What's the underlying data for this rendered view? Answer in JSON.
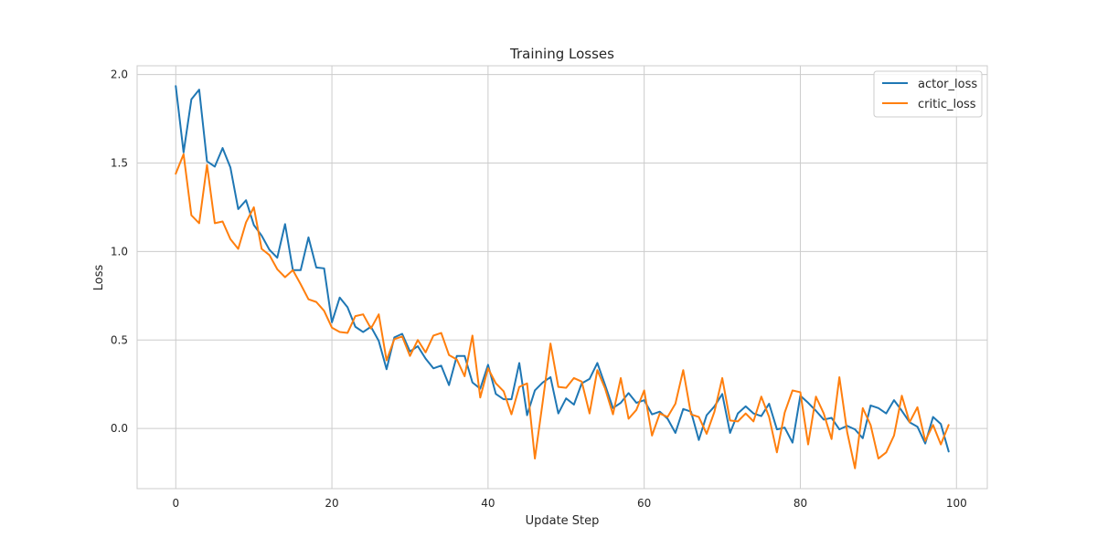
{
  "chart_data": {
    "type": "line",
    "title": "Training Losses",
    "xlabel": "Update Step",
    "ylabel": "Loss",
    "xlim": [
      -4.95,
      103.95
    ],
    "ylim": [
      -0.34,
      2.05
    ],
    "xticks": [
      0,
      20,
      40,
      60,
      80,
      100
    ],
    "yticks": [
      0.0,
      0.5,
      1.0,
      1.5,
      2.0
    ],
    "xtick_labels": [
      "0",
      "20",
      "40",
      "60",
      "80",
      "100"
    ],
    "ytick_labels": [
      "0.0",
      "0.5",
      "1.0",
      "1.5",
      "2.0"
    ],
    "grid": true,
    "legend_position": "top-right",
    "series": [
      {
        "name": "actor_loss",
        "color": "#1f77b4",
        "values": [
          1.935,
          1.56,
          1.86,
          1.915,
          1.51,
          1.48,
          1.585,
          1.475,
          1.24,
          1.29,
          1.15,
          1.09,
          1.01,
          0.965,
          1.155,
          0.895,
          0.895,
          1.08,
          0.91,
          0.905,
          0.6,
          0.74,
          0.685,
          0.575,
          0.545,
          0.575,
          0.495,
          0.335,
          0.515,
          0.535,
          0.435,
          0.465,
          0.395,
          0.34,
          0.355,
          0.245,
          0.41,
          0.41,
          0.26,
          0.225,
          0.36,
          0.195,
          0.165,
          0.165,
          0.37,
          0.075,
          0.215,
          0.26,
          0.29,
          0.085,
          0.17,
          0.135,
          0.255,
          0.28,
          0.37,
          0.245,
          0.115,
          0.145,
          0.2,
          0.145,
          0.16,
          0.08,
          0.095,
          0.055,
          -0.025,
          0.11,
          0.095,
          -0.065,
          0.075,
          0.125,
          0.195,
          -0.025,
          0.085,
          0.125,
          0.085,
          0.07,
          0.14,
          -0.005,
          0.005,
          -0.08,
          0.185,
          0.145,
          0.1,
          0.05,
          0.06,
          -0.005,
          0.015,
          -0.005,
          -0.055,
          0.13,
          0.115,
          0.085,
          0.16,
          0.1,
          0.035,
          0.01,
          -0.085,
          0.065,
          0.025,
          -0.13
        ]
      },
      {
        "name": "critic_loss",
        "color": "#ff7f0e",
        "values": [
          1.44,
          1.55,
          1.205,
          1.16,
          1.49,
          1.16,
          1.17,
          1.07,
          1.015,
          1.165,
          1.25,
          1.015,
          0.98,
          0.9,
          0.855,
          0.895,
          0.815,
          0.73,
          0.715,
          0.665,
          0.57,
          0.545,
          0.54,
          0.635,
          0.645,
          0.565,
          0.645,
          0.385,
          0.505,
          0.52,
          0.41,
          0.5,
          0.43,
          0.525,
          0.54,
          0.415,
          0.39,
          0.295,
          0.525,
          0.175,
          0.34,
          0.255,
          0.21,
          0.08,
          0.235,
          0.255,
          -0.17,
          0.15,
          0.48,
          0.235,
          0.23,
          0.285,
          0.265,
          0.085,
          0.33,
          0.225,
          0.08,
          0.285,
          0.055,
          0.105,
          0.215,
          -0.04,
          0.085,
          0.065,
          0.14,
          0.33,
          0.08,
          0.065,
          -0.03,
          0.095,
          0.285,
          0.045,
          0.04,
          0.085,
          0.04,
          0.18,
          0.065,
          -0.135,
          0.09,
          0.215,
          0.205,
          -0.09,
          0.18,
          0.085,
          -0.06,
          0.29,
          -0.02,
          -0.225,
          0.115,
          0.02,
          -0.17,
          -0.135,
          -0.04,
          0.185,
          0.035,
          0.12,
          -0.07,
          0.02,
          -0.09,
          0.02
        ]
      }
    ]
  }
}
